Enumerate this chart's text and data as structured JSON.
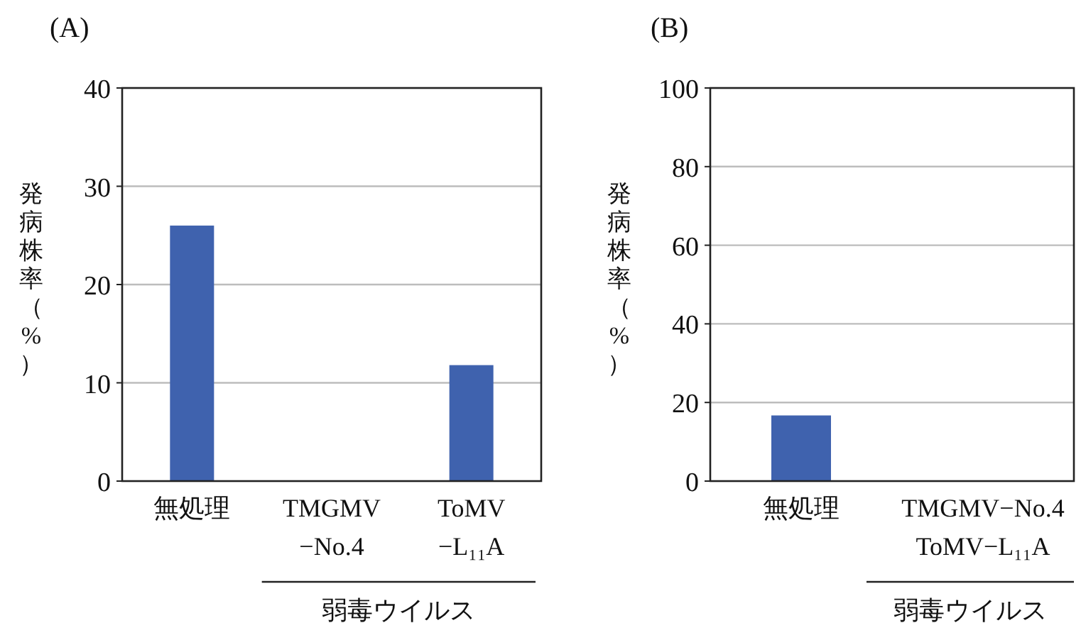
{
  "chart_data": [
    {
      "type": "bar",
      "title": "(A)",
      "ylabel": "発病株率（%）",
      "categories": [
        "無処理",
        "TMGMV\n−No.4",
        "ToMV\n−L₁₁A"
      ],
      "values": [
        26,
        0,
        11.8
      ],
      "color": "#3f62ae",
      "ylim": [
        0,
        40
      ],
      "yticks": [
        0,
        10,
        20,
        30,
        40
      ],
      "grid": "y",
      "annotations": [
        "弱毒ウイルス"
      ]
    },
    {
      "type": "bar",
      "title": "(B)",
      "ylabel": "発病株率（%）",
      "categories": [
        "無処理",
        "TMGMV−No.4\nToMV−L₁₁A"
      ],
      "values": [
        16.7,
        0
      ],
      "color": "#3f62ae",
      "ylim": [
        0,
        100
      ],
      "yticks": [
        0,
        20,
        40,
        60,
        80,
        100
      ],
      "grid": "y",
      "annotations": [
        "弱毒ウイルス"
      ]
    }
  ]
}
